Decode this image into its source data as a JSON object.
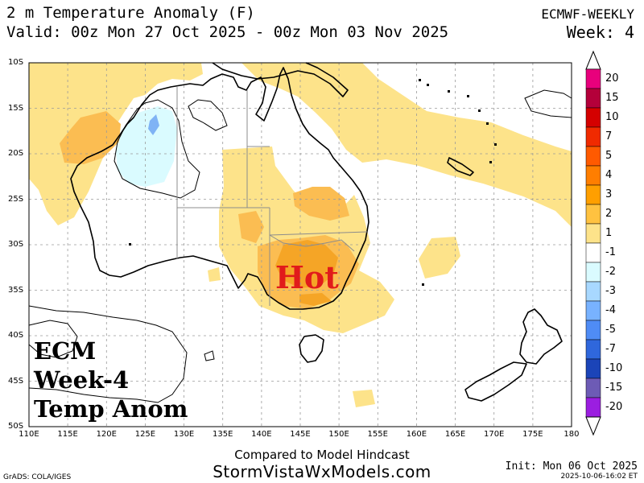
{
  "header": {
    "title": "2 m Temperature Anomaly (F)",
    "valid": "Valid: 00z Mon 27 Oct 2025 - 00z Mon 03 Nov 2025",
    "model": "ECMWF-WEEKLY",
    "week": "Week: 4"
  },
  "map": {
    "lat_labels": [
      "10S",
      "15S",
      "20S",
      "25S",
      "30S",
      "35S",
      "40S",
      "45S",
      "50S"
    ],
    "lon_labels": [
      "110E",
      "115E",
      "120E",
      "125E",
      "130E",
      "135E",
      "140E",
      "145E",
      "150E",
      "155E",
      "160E",
      "165E",
      "170E",
      "175E",
      "180"
    ],
    "overlay": {
      "hot_label": "Hot",
      "ecm_lines": [
        "ECM",
        "Week-4",
        "Temp Anom"
      ]
    }
  },
  "colorbar": {
    "labels": [
      "20",
      "15",
      "10",
      "7",
      "5",
      "4",
      "3",
      "2",
      "1",
      "-1",
      "-2",
      "-3",
      "-4",
      "-5",
      "-7",
      "-10",
      "-15",
      "-20"
    ],
    "colors": [
      "#e8007c",
      "#b4003a",
      "#d40000",
      "#f02a00",
      "#ff5a00",
      "#ff7e00",
      "#ff9f00",
      "#ffc240",
      "#fde38a",
      "#ffffff",
      "#dafbff",
      "#a8d8ff",
      "#78b2ff",
      "#4f8cf5",
      "#2f67dc",
      "#1b44b8",
      "#6d5bb5",
      "#9b1ee0"
    ]
  },
  "footer": {
    "compared": "Compared to Model Hindcast",
    "site": "StormVistaWxModels.com",
    "grads": "GrADS: COLA/IGES",
    "init": "Init: Mon 06 Oct 2025",
    "stamp": "2025-10-06-16:02 ET"
  }
}
